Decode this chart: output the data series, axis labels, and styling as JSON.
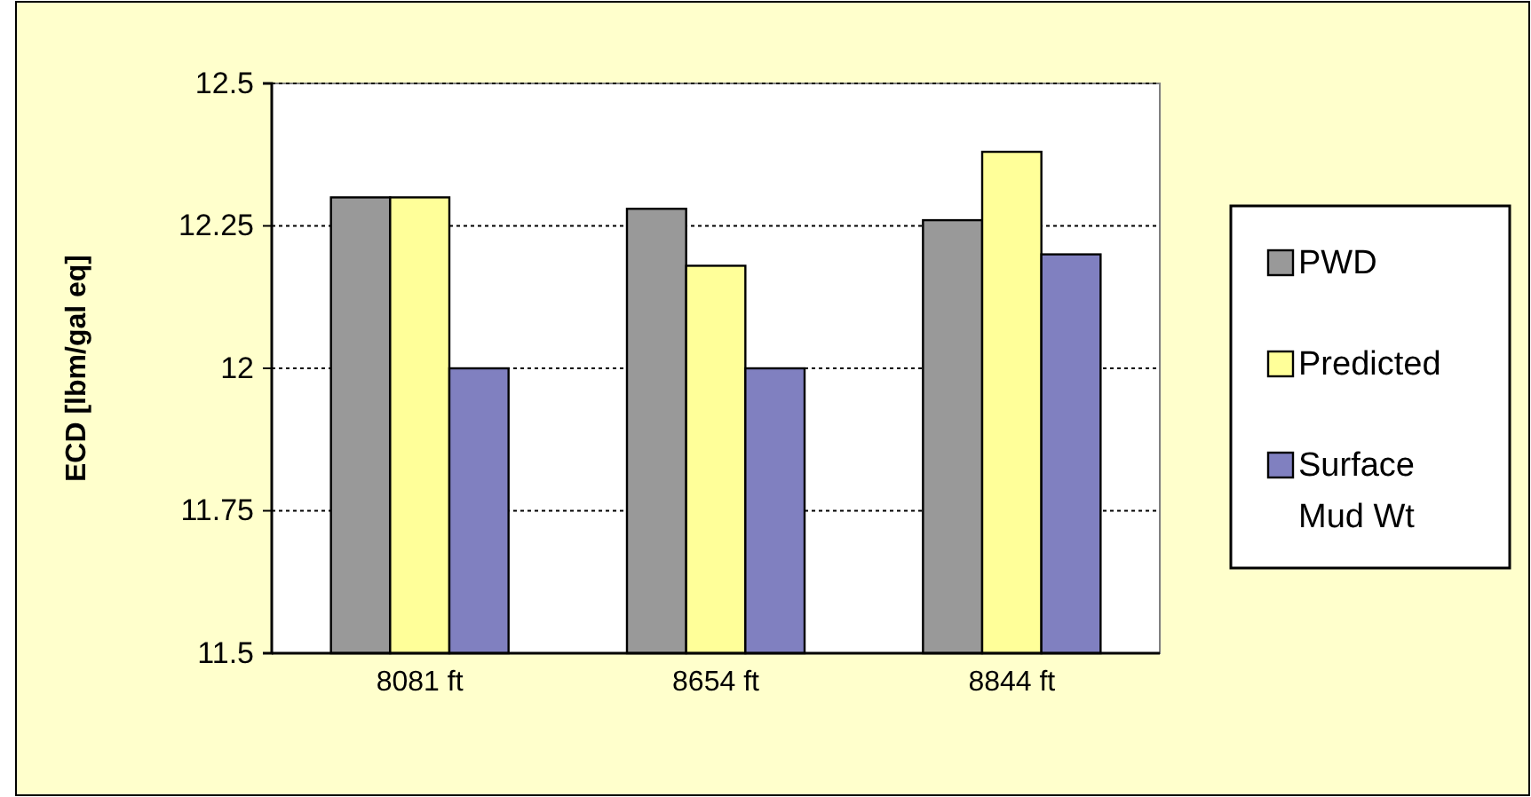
{
  "chart_data": {
    "type": "bar",
    "ylabel": "ECD [lbm/gal eq]",
    "categories": [
      "8081 ft",
      "8654 ft",
      "8844 ft"
    ],
    "series": [
      {
        "name": "PWD",
        "color": "#999999",
        "values": [
          12.3,
          12.28,
          12.26
        ]
      },
      {
        "name": "Predicted",
        "color": "#ffff99",
        "values": [
          12.3,
          12.18,
          12.38
        ]
      },
      {
        "name": "Surface Mud Wt",
        "color": "#8080c0",
        "values": [
          12.0,
          12.0,
          12.2
        ]
      }
    ],
    "ylim": [
      11.5,
      12.5
    ],
    "yticks": [
      11.5,
      11.75,
      12,
      12.25,
      12.5
    ],
    "grid": "y",
    "legend": "right"
  }
}
